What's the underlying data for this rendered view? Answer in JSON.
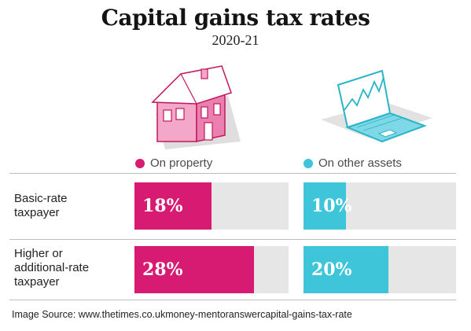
{
  "title": "Capital gains tax rates",
  "subtitle": "2020-21",
  "legend": [
    {
      "label": "On property",
      "color": "#d81b72"
    },
    {
      "label": "On other assets",
      "color": "#3ec5d9"
    }
  ],
  "icons": {
    "property": "house-icon",
    "assets": "laptop-icon"
  },
  "chart_data": {
    "type": "bar",
    "orientation": "horizontal",
    "title": "Capital gains tax rates",
    "subtitle": "2020-21",
    "categories": [
      "Basic-rate taxpayer",
      "Higher or additional-rate taxpayer"
    ],
    "series": [
      {
        "name": "On property",
        "color": "#d81b72",
        "values": [
          18,
          28
        ],
        "labels": [
          "18%",
          "28%"
        ]
      },
      {
        "name": "On other assets",
        "color": "#3ec5d9",
        "values": [
          10,
          20
        ],
        "labels": [
          "10%",
          "20%"
        ]
      }
    ],
    "xlim": [
      0,
      36
    ],
    "legend_position": "top",
    "grid": false
  },
  "row_labels": [
    [
      "Basic-rate",
      "taxpayer"
    ],
    [
      "Higher or",
      "additional-rate",
      "taxpayer"
    ]
  ],
  "source": "Image Source: www.thetimes.co.ukmoney-mentoranswercapital-gains-tax-rate"
}
